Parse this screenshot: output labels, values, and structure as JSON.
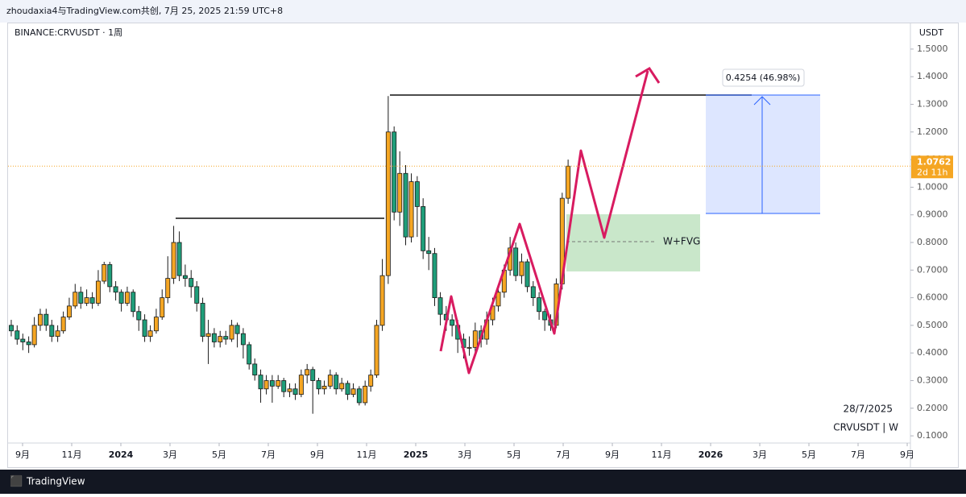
{
  "header": "zhoudaxia4与TradingView.com共创, 7月 25, 2025 21:59 UTC+8",
  "brand": "TradingView",
  "chart_data": {
    "type": "candlestick",
    "symbol": "BINANCE:CRVUSDT · 1周",
    "currency": "USDT",
    "up_color": "#f5a623",
    "down_color": "#1f9e7a",
    "outline_color": "#1a1a1a",
    "x": [
      -0.46,
      -0.22,
      0.01,
      0.25,
      0.48,
      0.72,
      0.96,
      1.19,
      1.43,
      1.66,
      1.9,
      2.14,
      2.37,
      2.61,
      2.84,
      3.08,
      3.32,
      3.55,
      3.79,
      4.02,
      4.26,
      4.5,
      4.73,
      4.97,
      5.2,
      5.44,
      5.68,
      5.91,
      6.15,
      6.38,
      6.62,
      6.86,
      7.09,
      7.33,
      7.56,
      7.8,
      8.04,
      8.27,
      8.51,
      8.74,
      8.98,
      9.22,
      9.45,
      9.69,
      9.92,
      10.16,
      10.4,
      10.63,
      10.87,
      11.1,
      11.34,
      11.58,
      11.81,
      12.05,
      12.28,
      12.52,
      12.76,
      12.99,
      13.23,
      13.46,
      13.7,
      13.94,
      14.17,
      14.41,
      14.64,
      14.88,
      15.12,
      15.35,
      15.59,
      15.82,
      16.06,
      16.3,
      16.53,
      16.77,
      17.0,
      17.24,
      17.48,
      17.71,
      17.95,
      18.18,
      18.42,
      18.66,
      18.89,
      19.13,
      19.36,
      19.6,
      19.84,
      20.07,
      20.31,
      20.54,
      20.78,
      21.02,
      21.25,
      21.49,
      21.72,
      21.96,
      22.2
    ],
    "open": [
      0.5,
      0.48,
      0.45,
      0.44,
      0.43,
      0.5,
      0.54,
      0.5,
      0.46,
      0.48,
      0.53,
      0.57,
      0.62,
      0.58,
      0.6,
      0.58,
      0.66,
      0.72,
      0.64,
      0.62,
      0.58,
      0.62,
      0.55,
      0.52,
      0.46,
      0.48,
      0.53,
      0.6,
      0.67,
      0.8,
      0.68,
      0.67,
      0.64,
      0.58,
      0.46,
      0.47,
      0.44,
      0.46,
      0.45,
      0.5,
      0.47,
      0.43,
      0.36,
      0.32,
      0.27,
      0.3,
      0.28,
      0.3,
      0.26,
      0.27,
      0.25,
      0.32,
      0.34,
      0.3,
      0.27,
      0.28,
      0.32,
      0.27,
      0.29,
      0.25,
      0.27,
      0.22,
      0.28,
      0.32,
      0.5,
      0.68,
      1.2,
      0.91,
      1.05,
      0.82,
      1.02,
      0.93,
      0.77,
      0.76,
      0.6,
      0.54,
      0.52,
      0.5,
      0.45,
      0.42,
      0.42,
      0.48,
      0.45,
      0.52,
      0.57,
      0.62,
      0.7,
      0.78,
      0.68,
      0.73,
      0.64,
      0.6,
      0.55,
      0.52,
      0.5,
      0.65,
      0.96
    ],
    "high": [
      0.52,
      0.5,
      0.47,
      0.46,
      0.53,
      0.56,
      0.56,
      0.52,
      0.5,
      0.55,
      0.6,
      0.65,
      0.64,
      0.63,
      0.62,
      0.7,
      0.73,
      0.73,
      0.66,
      0.63,
      0.64,
      0.63,
      0.57,
      0.54,
      0.5,
      0.56,
      0.63,
      0.75,
      0.86,
      0.84,
      0.72,
      0.7,
      0.66,
      0.6,
      0.52,
      0.49,
      0.48,
      0.48,
      0.52,
      0.51,
      0.49,
      0.44,
      0.38,
      0.34,
      0.32,
      0.32,
      0.32,
      0.31,
      0.29,
      0.29,
      0.34,
      0.36,
      0.35,
      0.31,
      0.3,
      0.34,
      0.33,
      0.31,
      0.3,
      0.29,
      0.28,
      0.3,
      0.34,
      0.52,
      0.74,
      1.33,
      1.22,
      1.13,
      1.08,
      1.05,
      1.04,
      0.96,
      0.82,
      0.78,
      0.62,
      0.57,
      0.54,
      0.52,
      0.47,
      0.46,
      0.51,
      0.5,
      0.55,
      0.6,
      0.64,
      0.72,
      0.82,
      0.8,
      0.76,
      0.74,
      0.66,
      0.62,
      0.56,
      0.54,
      0.67,
      0.98,
      1.1
    ],
    "low": [
      0.46,
      0.43,
      0.41,
      0.4,
      0.42,
      0.48,
      0.48,
      0.44,
      0.44,
      0.47,
      0.52,
      0.56,
      0.56,
      0.57,
      0.56,
      0.57,
      0.65,
      0.62,
      0.59,
      0.55,
      0.57,
      0.53,
      0.48,
      0.44,
      0.44,
      0.47,
      0.52,
      0.58,
      0.65,
      0.66,
      0.64,
      0.6,
      0.55,
      0.44,
      0.36,
      0.42,
      0.42,
      0.43,
      0.44,
      0.42,
      0.38,
      0.34,
      0.3,
      0.22,
      0.25,
      0.22,
      0.27,
      0.24,
      0.24,
      0.23,
      0.24,
      0.29,
      0.18,
      0.25,
      0.25,
      0.27,
      0.25,
      0.26,
      0.23,
      0.24,
      0.21,
      0.21,
      0.26,
      0.31,
      0.48,
      0.65,
      0.88,
      0.86,
      0.79,
      0.8,
      0.82,
      0.74,
      0.7,
      0.57,
      0.5,
      0.48,
      0.46,
      0.4,
      0.38,
      0.39,
      0.4,
      0.42,
      0.43,
      0.5,
      0.55,
      0.6,
      0.68,
      0.66,
      0.65,
      0.62,
      0.57,
      0.52,
      0.48,
      0.48,
      0.49,
      0.63,
      0.94
    ],
    "close": [
      0.48,
      0.45,
      0.44,
      0.43,
      0.5,
      0.54,
      0.5,
      0.46,
      0.48,
      0.53,
      0.57,
      0.62,
      0.58,
      0.6,
      0.58,
      0.66,
      0.72,
      0.64,
      0.62,
      0.58,
      0.62,
      0.55,
      0.52,
      0.46,
      0.48,
      0.53,
      0.6,
      0.67,
      0.8,
      0.68,
      0.67,
      0.64,
      0.58,
      0.46,
      0.47,
      0.44,
      0.46,
      0.45,
      0.5,
      0.47,
      0.43,
      0.36,
      0.32,
      0.27,
      0.3,
      0.28,
      0.3,
      0.26,
      0.27,
      0.25,
      0.32,
      0.34,
      0.3,
      0.27,
      0.28,
      0.32,
      0.27,
      0.29,
      0.25,
      0.27,
      0.22,
      0.28,
      0.32,
      0.5,
      0.68,
      1.2,
      0.91,
      1.05,
      0.82,
      1.02,
      0.93,
      0.77,
      0.76,
      0.6,
      0.54,
      0.52,
      0.5,
      0.45,
      0.42,
      0.42,
      0.48,
      0.45,
      0.52,
      0.57,
      0.62,
      0.7,
      0.78,
      0.68,
      0.73,
      0.64,
      0.6,
      0.55,
      0.52,
      0.5,
      0.65,
      0.96,
      1.0762
    ],
    "ylim": [
      0.074,
      1.596
    ],
    "yticks": [
      {
        "value": 0.1,
        "label": "0.1000"
      },
      {
        "value": 0.2,
        "label": "0.2000"
      },
      {
        "value": 0.3,
        "label": "0.3000"
      },
      {
        "value": 0.4,
        "label": "0.4000"
      },
      {
        "value": 0.5,
        "label": "0.5000"
      },
      {
        "value": 0.6,
        "label": "0.6000"
      },
      {
        "value": 0.7,
        "label": "0.7000"
      },
      {
        "value": 0.8,
        "label": "0.8000"
      },
      {
        "value": 0.9,
        "label": "0.9000"
      },
      {
        "value": 1.0,
        "label": "1.0000"
      },
      {
        "value": 1.1,
        "label": "1.1000"
      },
      {
        "value": 1.2,
        "label": "1.2000"
      },
      {
        "value": 1.3,
        "label": "1.3000"
      },
      {
        "value": 1.4,
        "label": "1.4000"
      },
      {
        "value": 1.5,
        "label": "1.5000"
      }
    ],
    "xlim": [
      -0.59,
      36.13
    ],
    "xticks": [
      {
        "value": 0,
        "label": "9月"
      },
      {
        "value": 2,
        "label": "11月"
      },
      {
        "value": 4,
        "label": "2024"
      },
      {
        "value": 6,
        "label": "3月"
      },
      {
        "value": 8,
        "label": "5月"
      },
      {
        "value": 10,
        "label": "7月"
      },
      {
        "value": 12,
        "label": "9月"
      },
      {
        "value": 14,
        "label": "11月"
      },
      {
        "value": 16,
        "label": "2025"
      },
      {
        "value": 18,
        "label": "3月"
      },
      {
        "value": 20,
        "label": "5月"
      },
      {
        "value": 22,
        "label": "7月"
      },
      {
        "value": 24,
        "label": "9月"
      },
      {
        "value": 26,
        "label": "11月"
      },
      {
        "value": 28,
        "label": "2026"
      },
      {
        "value": 30,
        "label": "3月"
      },
      {
        "value": 32,
        "label": "5月"
      },
      {
        "value": 34,
        "label": "7月"
      },
      {
        "value": 36,
        "label": "9月"
      }
    ],
    "grid": false,
    "last_price": {
      "value": 1.0762,
      "label": "1.0762"
    },
    "countdown": "2d 11h",
    "measure_label": "0.4254 (46.98%)",
    "pattern_label": "W+FVG",
    "date_label": "28/7/2025",
    "interval_label": "CRVUSDT | W"
  }
}
